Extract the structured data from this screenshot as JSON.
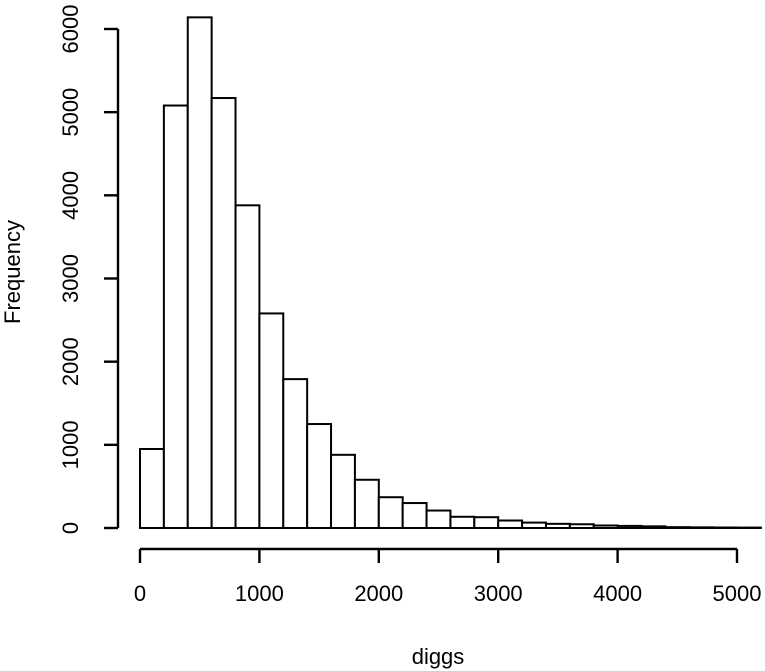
{
  "chart_data": {
    "type": "bar",
    "subtype": "histogram",
    "title": "",
    "xlabel": "diggs",
    "ylabel": "Frequency",
    "bin_width": 200,
    "bins": [
      {
        "start": 0,
        "end": 200,
        "count": 950
      },
      {
        "start": 200,
        "end": 400,
        "count": 5080
      },
      {
        "start": 400,
        "end": 600,
        "count": 6140
      },
      {
        "start": 600,
        "end": 800,
        "count": 5170
      },
      {
        "start": 800,
        "end": 1000,
        "count": 3880
      },
      {
        "start": 1000,
        "end": 1200,
        "count": 2580
      },
      {
        "start": 1200,
        "end": 1400,
        "count": 1790
      },
      {
        "start": 1400,
        "end": 1600,
        "count": 1250
      },
      {
        "start": 1600,
        "end": 1800,
        "count": 880
      },
      {
        "start": 1800,
        "end": 2000,
        "count": 580
      },
      {
        "start": 2000,
        "end": 2200,
        "count": 370
      },
      {
        "start": 2200,
        "end": 2400,
        "count": 300
      },
      {
        "start": 2400,
        "end": 2600,
        "count": 210
      },
      {
        "start": 2600,
        "end": 2800,
        "count": 135
      },
      {
        "start": 2800,
        "end": 3000,
        "count": 130
      },
      {
        "start": 3000,
        "end": 3200,
        "count": 90
      },
      {
        "start": 3200,
        "end": 3400,
        "count": 65
      },
      {
        "start": 3400,
        "end": 3600,
        "count": 50
      },
      {
        "start": 3600,
        "end": 3800,
        "count": 45
      },
      {
        "start": 3800,
        "end": 4000,
        "count": 30
      },
      {
        "start": 4000,
        "end": 4200,
        "count": 25
      },
      {
        "start": 4200,
        "end": 4400,
        "count": 20
      },
      {
        "start": 4400,
        "end": 4600,
        "count": 10
      },
      {
        "start": 4600,
        "end": 4800,
        "count": 8
      },
      {
        "start": 4800,
        "end": 5000,
        "count": 6
      },
      {
        "start": 5000,
        "end": 5200,
        "count": 5
      }
    ],
    "x_ticks": [
      0,
      1000,
      2000,
      3000,
      4000,
      5000
    ],
    "y_ticks": [
      0,
      1000,
      2000,
      3000,
      4000,
      5000,
      6000
    ],
    "xlim": [
      0,
      5200
    ],
    "ylim": [
      0,
      6000
    ],
    "grid": false,
    "legend": "none",
    "colors": {
      "bar_fill": "#ffffff",
      "bar_stroke": "#000000",
      "background": "#ffffff"
    }
  }
}
